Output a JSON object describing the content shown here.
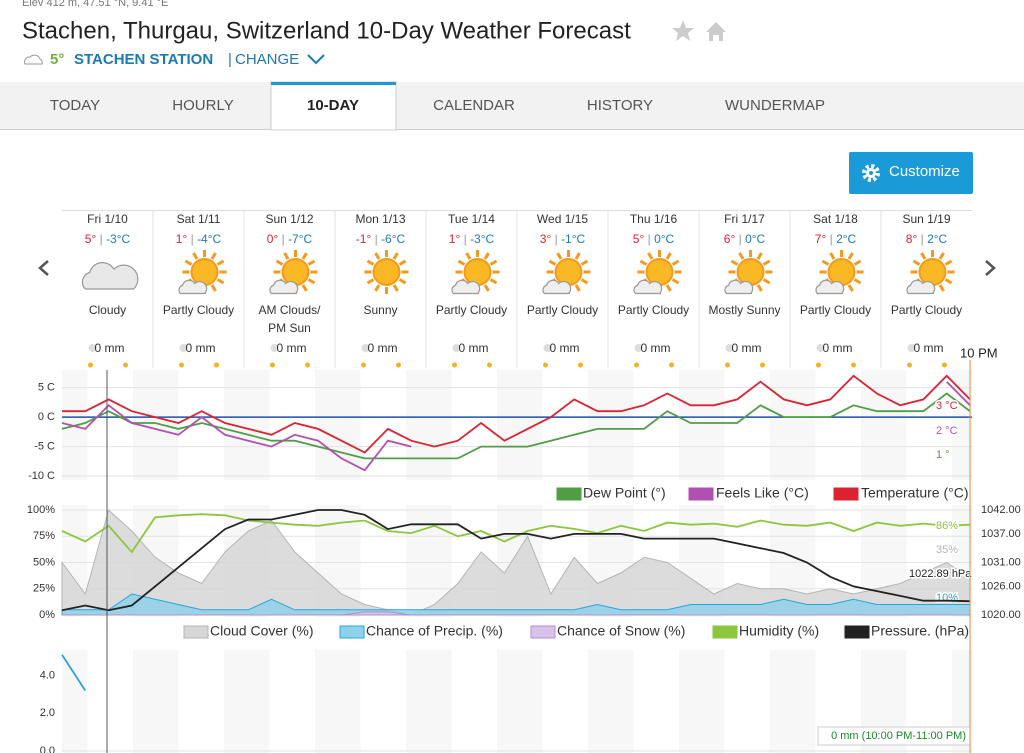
{
  "header": {
    "elev": "Elev 412 m, 47.51 °N, 9.41 °E",
    "title": "Stachen, Thurgau, Switzerland 10-Day Weather Forecast",
    "temp": "5°",
    "station": "STACHEN STATION",
    "change": "CHANGE"
  },
  "tabs": [
    "TODAY",
    "HOURLY",
    "10-DAY",
    "CALENDAR",
    "HISTORY",
    "WUNDERMAP"
  ],
  "customize": "Customize",
  "time_marker": "10 PM",
  "days": [
    {
      "date": "Fri 1/10",
      "high": "5°",
      "low": "-3°C",
      "condition": "Cloudy",
      "precip": "0 mm"
    },
    {
      "date": "Sat 1/11",
      "high": "1°",
      "low": "-4°C",
      "condition": "Partly Cloudy",
      "precip": "0 mm"
    },
    {
      "date": "Sun 1/12",
      "high": "0°",
      "low": "-7°C",
      "condition": "AM Clouds/PM Sun",
      "precip": "0 mm"
    },
    {
      "date": "Mon 1/13",
      "high": "-1°",
      "low": "-6°C",
      "condition": "Sunny",
      "precip": "0 mm"
    },
    {
      "date": "Tue 1/14",
      "high": "1°",
      "low": "-3°C",
      "condition": "Partly Cloudy",
      "precip": "0 mm"
    },
    {
      "date": "Wed 1/15",
      "high": "3°",
      "low": "-1°C",
      "condition": "Partly Cloudy",
      "precip": "0 mm"
    },
    {
      "date": "Thu 1/16",
      "high": "5°",
      "low": "0°C",
      "condition": "Partly Cloudy",
      "precip": "0 mm"
    },
    {
      "date": "Fri 1/17",
      "high": "6°",
      "low": "0°C",
      "condition": "Mostly Sunny",
      "precip": "0 mm"
    },
    {
      "date": "Sat 1/18",
      "high": "7°",
      "low": "2°C",
      "condition": "Partly Cloudy",
      "precip": "0 mm"
    },
    {
      "date": "Sun 1/19",
      "high": "8°",
      "low": "2°C",
      "condition": "Partly Cloudy",
      "precip": "0 mm"
    }
  ],
  "chart_data": [
    {
      "type": "line",
      "grid": true,
      "zero_line_color": "#1f4fa0",
      "categories": [
        null,
        null,
        null,
        null,
        null,
        null,
        null,
        null,
        null,
        null,
        null,
        null,
        null,
        null,
        null,
        null,
        null,
        null,
        null,
        null,
        null,
        null,
        null,
        null,
        null,
        null,
        null,
        null,
        null,
        null,
        null,
        null,
        null,
        null,
        null,
        null,
        null,
        null,
        null,
        null
      ],
      "ylim": [
        -10.5,
        8.5
      ],
      "yticks": [
        {
          "value": 5,
          "label": "5 C"
        },
        {
          "value": 0,
          "label": "0 C"
        },
        {
          "value": -5,
          "label": "-5 C"
        },
        {
          "value": -10,
          "label": "-10 C"
        }
      ],
      "series": [
        {
          "name": "Dew Point (°)",
          "color": "#4f9e45",
          "end_label": "1 °",
          "values": [
            -2,
            -1,
            1,
            -1,
            -1,
            -2,
            -1,
            -2,
            -3,
            -4,
            -4,
            -5,
            -6,
            -7,
            -7,
            -7,
            -7,
            -7,
            -5,
            -5,
            -5,
            -4,
            -3,
            -2,
            -2,
            -2,
            1,
            -1,
            -1,
            -1,
            2,
            0,
            0,
            0,
            2,
            1,
            1,
            1,
            4,
            1
          ]
        },
        {
          "name": "Feels Like (°C)",
          "color": "#b050b0",
          "end_label": "2 °C",
          "values": [
            -1,
            -2,
            2,
            -1,
            -2,
            -3,
            0,
            -3,
            -4,
            -5,
            -3,
            -4,
            -7,
            -9,
            -4,
            -5,
            null,
            null,
            null,
            null,
            null,
            null,
            null,
            null,
            null,
            null,
            null,
            null,
            null,
            null,
            null,
            null,
            null,
            null,
            null,
            null,
            null,
            null,
            6,
            2
          ]
        },
        {
          "name": "Temperature (°C)",
          "color": "#dc2230",
          "end_label": "3 °C",
          "values": [
            1,
            1,
            3,
            1,
            0,
            -1,
            1,
            -1,
            -2,
            -3,
            -1,
            -2,
            -4,
            -6,
            -2,
            -4,
            -5,
            -4,
            -1,
            -4,
            -2,
            0,
            3,
            1,
            1,
            2,
            4,
            2,
            2,
            3,
            6,
            3,
            2,
            3,
            7,
            4,
            2,
            3,
            7,
            3
          ]
        }
      ]
    },
    {
      "type": "line",
      "grid": true,
      "categories": [
        null,
        null,
        null,
        null,
        null,
        null,
        null,
        null,
        null,
        null,
        null,
        null,
        null,
        null,
        null,
        null,
        null,
        null,
        null,
        null,
        null,
        null,
        null,
        null,
        null,
        null,
        null,
        null,
        null,
        null,
        null,
        null,
        null,
        null,
        null,
        null,
        null,
        null,
        null,
        null
      ],
      "ylim": [
        0,
        100
      ],
      "yticks": [
        {
          "value": 0,
          "label": "0%"
        },
        {
          "value": 25,
          "label": "25%"
        },
        {
          "value": 50,
          "label": "50%"
        },
        {
          "value": 75,
          "label": "75%"
        },
        {
          "value": 100,
          "label": "100%"
        }
      ],
      "y2lim": [
        1020,
        1042
      ],
      "y2ticks": [
        {
          "value": 1020,
          "label": "1020.00"
        },
        {
          "value": 1026,
          "label": "1026.00"
        },
        {
          "value": 1031,
          "label": "1031.00"
        },
        {
          "value": 1037,
          "label": "1037.00"
        },
        {
          "value": 1042,
          "label": "1042.00"
        }
      ],
      "series": [
        {
          "name": "Cloud Cover (%)",
          "color": "#b5b5b5",
          "fill": "#d6d6d6",
          "end_label": "35%",
          "values": [
            50,
            20,
            100,
            80,
            55,
            40,
            30,
            60,
            80,
            90,
            60,
            40,
            20,
            10,
            5,
            0,
            10,
            30,
            60,
            40,
            75,
            20,
            55,
            30,
            40,
            55,
            50,
            35,
            20,
            30,
            25,
            25,
            20,
            25,
            20,
            25,
            30,
            40,
            50,
            35
          ]
        },
        {
          "name": "Chance of Precip. (%)",
          "color": "#2aa6d6",
          "fill": "#8fd0ea",
          "end_label": "10%",
          "values": [
            5,
            5,
            5,
            20,
            15,
            10,
            5,
            5,
            5,
            15,
            5,
            5,
            5,
            5,
            5,
            5,
            5,
            5,
            5,
            5,
            5,
            5,
            5,
            10,
            5,
            5,
            5,
            10,
            10,
            10,
            10,
            15,
            10,
            10,
            15,
            10,
            10,
            10,
            10,
            10
          ]
        },
        {
          "name": "Chance of Snow (%)",
          "color": "#b58fd0",
          "fill": "#d8c2ea",
          "values": [
            0,
            0,
            0,
            0,
            0,
            0,
            0,
            0,
            0,
            0,
            0,
            0,
            0,
            3,
            3,
            0,
            0,
            0,
            0,
            0,
            0,
            0,
            0,
            0,
            0,
            0,
            0,
            0,
            0,
            0,
            0,
            0,
            0,
            0,
            0,
            0,
            0,
            0,
            0,
            0
          ]
        },
        {
          "name": "Humidity (%)",
          "color": "#8cc63f",
          "end_label": "86%",
          "values": [
            80,
            70,
            85,
            60,
            93,
            95,
            96,
            95,
            90,
            88,
            86,
            85,
            88,
            90,
            80,
            78,
            85,
            75,
            80,
            70,
            80,
            85,
            82,
            78,
            85,
            80,
            88,
            86,
            87,
            84,
            90,
            86,
            85,
            88,
            80,
            88,
            85,
            87,
            85,
            86
          ]
        },
        {
          "name": "Pressure. (hPa)",
          "color": "#222222",
          "axis": "y2",
          "end_label": "1022.89 hPa",
          "values": [
            1021,
            1022,
            1021,
            1022,
            1026,
            1030,
            1034,
            1038,
            1040,
            1040,
            1041,
            1042,
            1042,
            1041,
            1038,
            1039,
            1039,
            1039,
            1036,
            1037,
            1037,
            1036,
            1037,
            1037,
            1037,
            1036,
            1036,
            1036,
            1036,
            1035,
            1034,
            1033,
            1031,
            1028,
            1026,
            1025,
            1024,
            1023,
            1023,
            1022.89
          ]
        }
      ]
    },
    {
      "type": "line",
      "grid": false,
      "annotation": "0 mm (10:00 PM-11:00 PM)",
      "categories": [
        null,
        null,
        null,
        null,
        null,
        null,
        null,
        null,
        null,
        null,
        null,
        null,
        null,
        null,
        null,
        null,
        null,
        null,
        null,
        null,
        null,
        null,
        null,
        null,
        null,
        null,
        null,
        null,
        null,
        null,
        null,
        null,
        null,
        null,
        null,
        null,
        null,
        null,
        null,
        null
      ],
      "ylim": [
        0,
        5.3
      ],
      "yticks": [
        {
          "value": 0,
          "label": "0.0"
        },
        {
          "value": 2,
          "label": "2.0"
        },
        {
          "value": 4,
          "label": "4.0"
        }
      ],
      "series": [
        {
          "color": "#2aa6d6",
          "values": [
            5.1,
            3.2,
            null,
            null,
            null,
            null,
            null,
            null,
            null,
            null,
            null,
            null,
            null,
            null,
            null,
            null,
            null,
            null,
            null,
            null,
            null,
            null,
            null,
            null,
            null,
            null,
            null,
            null,
            null,
            null,
            null,
            null,
            null,
            null,
            null,
            null,
            null,
            null,
            null,
            null
          ]
        }
      ]
    }
  ]
}
